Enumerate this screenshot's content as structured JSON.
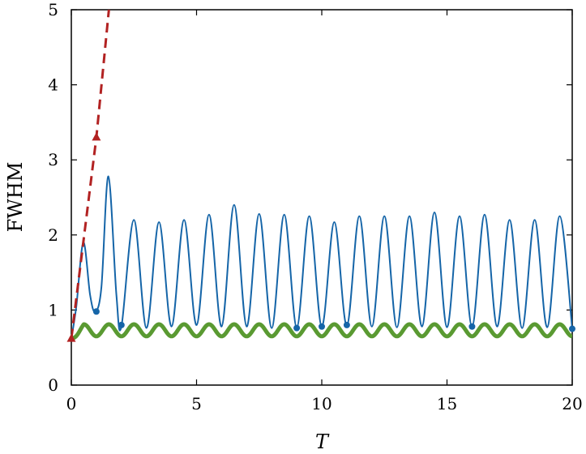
{
  "chart_data": {
    "type": "line",
    "xlabel": "T",
    "ylabel": "FWHM",
    "xlim": [
      0,
      20
    ],
    "ylim": [
      0,
      5
    ],
    "xticks": [
      0,
      5,
      10,
      15,
      20
    ],
    "yticks": [
      0,
      1,
      2,
      3,
      4,
      5
    ],
    "grid": false,
    "legend": "none",
    "series": [
      {
        "color": "#b22222",
        "style": "dashed-triangle",
        "x": [
          0,
          1,
          1.5
        ],
        "y": [
          0.62,
          3.3,
          5.0
        ]
      },
      {
        "color": "#1565a8",
        "style": "solid-thin",
        "period": 1.0,
        "x": [
          0,
          0.2,
          0.48,
          0.75,
          0.95,
          1.2,
          1.48,
          1.8,
          2.0,
          2.5,
          3.0,
          3.5,
          4.0,
          4.5,
          5.0,
          5.5,
          6.0,
          6.5,
          7.0,
          7.5,
          8.0,
          8.5,
          9.0,
          9.5,
          10.0,
          10.5,
          11.0,
          11.5,
          12.0,
          12.5,
          13.0,
          13.5,
          14.0,
          14.5,
          15.0,
          15.5,
          16.0,
          16.5,
          17.0,
          17.5,
          18.0,
          18.5,
          19.0,
          19.5,
          20.0
        ],
        "y": [
          0.62,
          1.05,
          1.9,
          1.2,
          0.98,
          1.3,
          2.78,
          1.2,
          0.78,
          2.2,
          0.76,
          2.17,
          0.78,
          2.2,
          0.8,
          2.27,
          0.78,
          2.4,
          0.78,
          2.28,
          0.76,
          2.27,
          0.77,
          2.25,
          0.78,
          2.17,
          0.79,
          2.25,
          0.78,
          2.25,
          0.77,
          2.25,
          0.78,
          2.3,
          0.77,
          2.25,
          0.78,
          2.27,
          0.78,
          2.2,
          0.76,
          2.2,
          0.77,
          2.25,
          0.75
        ],
        "markers": [
          [
            1.0,
            0.98
          ],
          [
            2.0,
            0.8
          ],
          [
            9.0,
            0.76
          ],
          [
            10.0,
            0.78
          ],
          [
            11.0,
            0.8
          ],
          [
            16.0,
            0.78
          ],
          [
            20.0,
            0.75
          ]
        ]
      },
      {
        "color": "#5a9a32",
        "style": "solid-thick",
        "period": 1.0,
        "amplitude": 0.08,
        "mean": 0.73,
        "x": [
          0,
          0.5,
          1.0,
          2.0,
          5.0,
          10.0,
          15.0,
          20.0
        ],
        "y": [
          0.62,
          0.78,
          0.66,
          0.78,
          0.76,
          0.74,
          0.75,
          0.75
        ]
      }
    ]
  }
}
